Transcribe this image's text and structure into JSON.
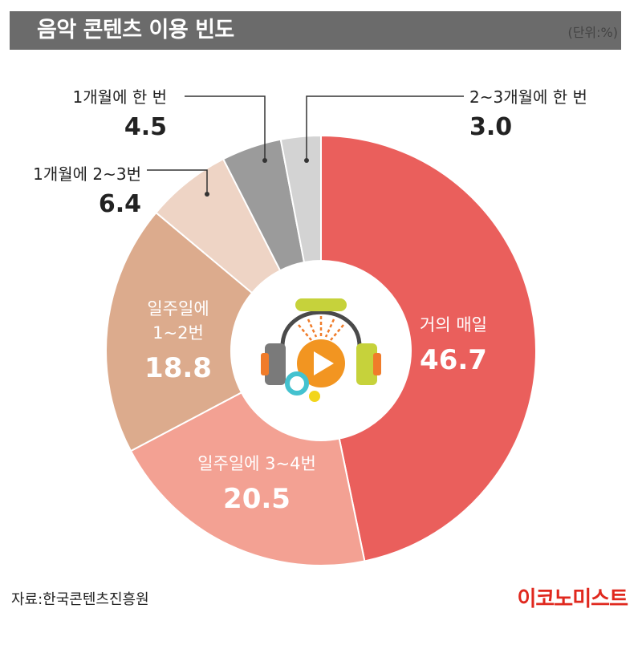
{
  "header": {
    "title": "음악 콘텐츠 이용 빈도",
    "unit": "(단위:%)"
  },
  "footer": {
    "source": "자료:한국콘텐츠진흥원",
    "logo": "이코노미스트"
  },
  "chart_data": {
    "type": "pie",
    "title": "음악 콘텐츠 이용 빈도",
    "unit": "%",
    "donut": true,
    "start_angle_deg": 0,
    "direction": "clockwise",
    "series": [
      {
        "name": "거의 매일",
        "label_lines": [
          "거의 매일"
        ],
        "value": 46.7,
        "value_text": "46.7",
        "color": "#ea5f5c"
      },
      {
        "name": "일주일에 3~4번",
        "label_lines": [
          "일주일에 3~4번"
        ],
        "value": 20.5,
        "value_text": "20.5",
        "color": "#f3a193"
      },
      {
        "name": "일주일에 1~2번",
        "label_lines": [
          "일주일에",
          "1~2번"
        ],
        "value": 18.8,
        "value_text": "18.8",
        "color": "#dcab8d"
      },
      {
        "name": "1개월에 2~3번",
        "label_lines": [
          "1개월에 2~3번"
        ],
        "value": 6.4,
        "value_text": "6.4",
        "color": "#eed4c5"
      },
      {
        "name": "1개월에 한 번",
        "label_lines": [
          "1개월에 한 번"
        ],
        "value": 4.5,
        "value_text": "4.5",
        "color": "#9b9b9b"
      },
      {
        "name": "2~3개월에 한 번",
        "label_lines": [
          "2~3개월에 한 번"
        ],
        "value": 3.0,
        "value_text": "3.0",
        "color": "#d3d3d3"
      }
    ],
    "legend": "none",
    "center_icon": "headphones-play-icon"
  }
}
